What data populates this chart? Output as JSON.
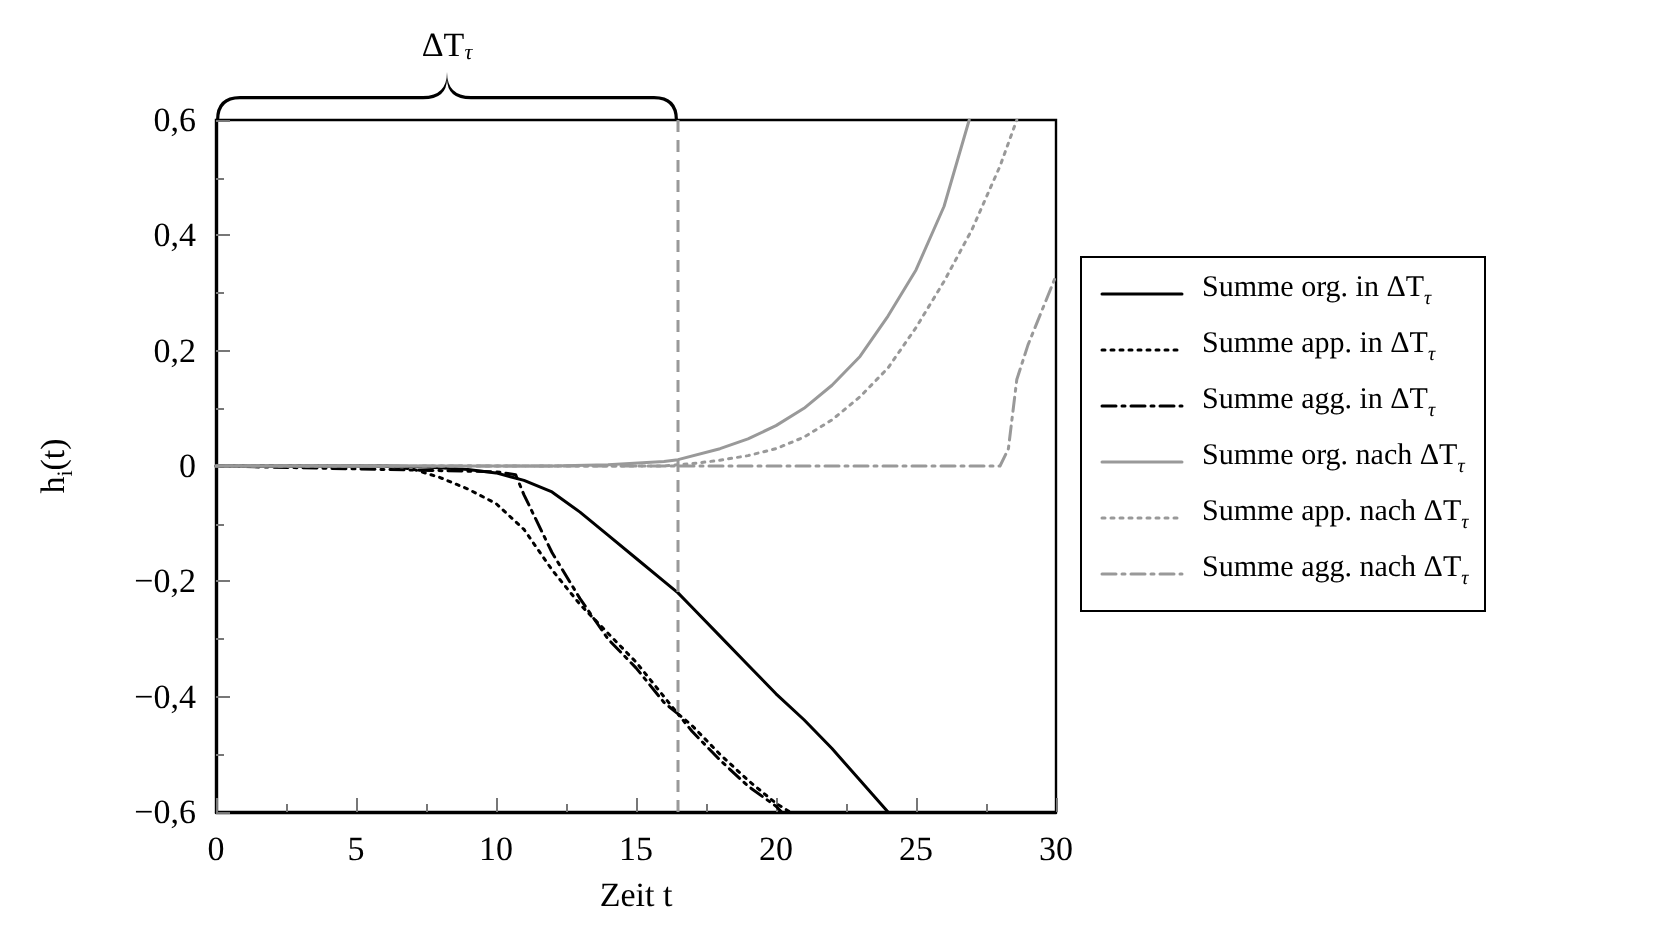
{
  "chart_data": {
    "type": "line",
    "xlabel": "Zeit t",
    "ylabel": "h$_{i}$(t)",
    "annotations": [
      "ΔT$_{τ}$"
    ],
    "xlim": [
      0,
      30
    ],
    "xticks": [
      0,
      5,
      10,
      15,
      20,
      25,
      30
    ],
    "ylim": [
      -0.6,
      0.6
    ],
    "yticks": [
      {
        "value": -0.6,
        "label": "−0,6"
      },
      {
        "value": -0.4,
        "label": "−0,4"
      },
      {
        "value": -0.2,
        "label": "−0,2"
      },
      {
        "value": 0,
        "label": "0"
      },
      {
        "value": 0.2,
        "label": "0,2"
      },
      {
        "value": 0.4,
        "label": "0,4"
      },
      {
        "value": 0.6,
        "label": "0,6"
      }
    ],
    "grid": false,
    "legend": "right",
    "marker": "none",
    "ref_lines": [
      {
        "axis": "x",
        "value": 16.5,
        "color": "#999999",
        "line_style": "dashed"
      }
    ],
    "series": [
      {
        "name": "Summe org. in ΔT$_{τ}$",
        "color": "#000000",
        "line_style": "solid",
        "x": [
          0,
          6,
          7,
          8,
          9,
          10,
          11,
          12,
          13,
          14,
          15,
          16,
          16.5,
          17,
          18,
          19,
          20,
          21,
          22,
          23,
          24
        ],
        "values": [
          0,
          0,
          -0.001,
          -0.003,
          -0.006,
          -0.012,
          -0.025,
          -0.045,
          -0.08,
          -0.12,
          -0.16,
          -0.2,
          -0.22,
          -0.245,
          -0.295,
          -0.345,
          -0.395,
          -0.44,
          -0.49,
          -0.545,
          -0.6
        ]
      },
      {
        "name": "Summe app. in ΔT$_{τ}$",
        "color": "#000000",
        "line_style": "dotted",
        "x": [
          0,
          6,
          7,
          8,
          9,
          10,
          11,
          12,
          13,
          14,
          15,
          16,
          16.5,
          17,
          18,
          19,
          20,
          20.5
        ],
        "values": [
          0,
          0,
          -0.005,
          -0.02,
          -0.04,
          -0.065,
          -0.11,
          -0.18,
          -0.24,
          -0.29,
          -0.34,
          -0.4,
          -0.43,
          -0.45,
          -0.5,
          -0.545,
          -0.585,
          -0.6
        ]
      },
      {
        "name": "Summe agg. in ΔT$_{τ}$",
        "color": "#000000",
        "line_style": "dashed",
        "x": [
          0,
          10,
          10.7,
          11,
          12,
          13,
          14,
          15,
          16,
          16.5,
          17,
          18,
          19,
          20,
          20.2
        ],
        "values": [
          0,
          -0.01,
          -0.015,
          -0.05,
          -0.15,
          -0.23,
          -0.3,
          -0.35,
          -0.41,
          -0.43,
          -0.46,
          -0.51,
          -0.555,
          -0.59,
          -0.6
        ]
      },
      {
        "name": "Summe org. nach ΔT$_{τ}$",
        "color": "#999999",
        "line_style": "solid",
        "x": [
          0,
          12,
          14,
          16,
          16.5,
          18,
          19,
          20,
          21,
          22,
          23,
          24,
          25,
          26,
          26.9
        ],
        "values": [
          0,
          0,
          0.002,
          0.008,
          0.011,
          0.03,
          0.047,
          0.07,
          0.1,
          0.14,
          0.19,
          0.26,
          0.34,
          0.45,
          0.6
        ]
      },
      {
        "name": "Summe app. nach ΔT$_{τ}$",
        "color": "#999999",
        "line_style": "dotted",
        "x": [
          0,
          16,
          17,
          18,
          19,
          20,
          21,
          22,
          23,
          24,
          25,
          26,
          27,
          28,
          28.6
        ],
        "values": [
          0,
          0,
          0.004,
          0.01,
          0.018,
          0.03,
          0.05,
          0.08,
          0.12,
          0.17,
          0.24,
          0.32,
          0.41,
          0.52,
          0.6
        ]
      },
      {
        "name": "Summe agg. nach ΔT$_{τ}$",
        "color": "#999999",
        "line_style": "dashed",
        "x": [
          0,
          28,
          28.3,
          28.6,
          29,
          29.5,
          30
        ],
        "values": [
          0,
          0,
          0.03,
          0.15,
          0.21,
          0.27,
          0.33
        ]
      }
    ]
  }
}
